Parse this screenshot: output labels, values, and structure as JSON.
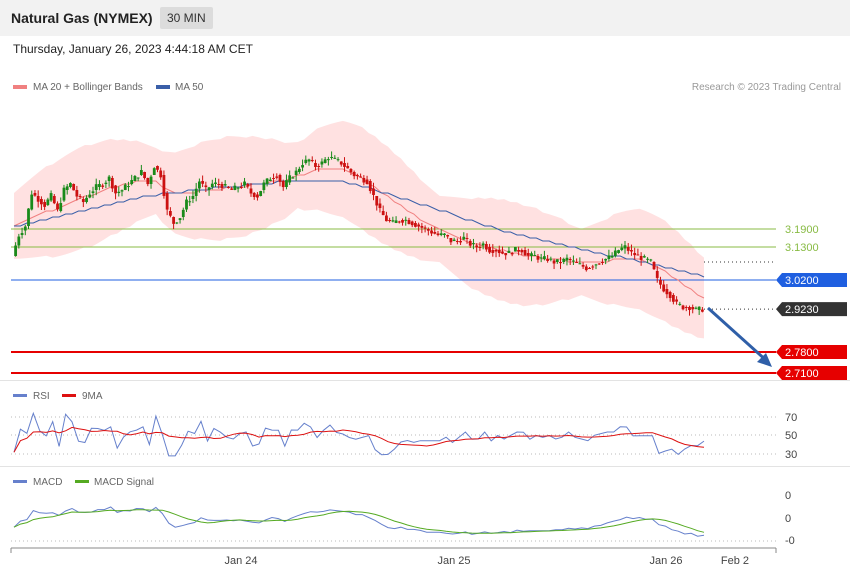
{
  "header": {
    "title": "Natural Gas (NYMEX)",
    "timeframe": "30 MIN",
    "date": "Thursday, January 26, 2023 4:44:18 AM CET"
  },
  "legend": {
    "ma20": "MA 20 + Bollinger Bands",
    "ma50": "MA 50",
    "credit": "Research © 2023 Trading Central",
    "rsi": "RSI",
    "rsi9": "9MA",
    "macd": "MACD",
    "macd_signal": "MACD Signal"
  },
  "colors": {
    "bull": "#1a8a1a",
    "bear": "#cc1111",
    "ma20": "#f08080",
    "ma50": "#3a5fa8",
    "band": "#ffdcdc",
    "resistance": "#88bb44",
    "pivot": "#1f5fe0",
    "last": "#333333",
    "support": "#e60000",
    "rsi": "#6680cc",
    "rsi9": "#dd1111",
    "macd": "#6680cc",
    "macd_signal": "#55aa22"
  },
  "chart_data": {
    "type": "candlestick",
    "xlabels": [
      "Jan 24",
      "Jan 25",
      "Jan 26",
      "Feb 2"
    ],
    "levels": [
      {
        "value": 3.19,
        "label": "3.1900",
        "kind": "resistance"
      },
      {
        "value": 3.13,
        "label": "3.1300",
        "kind": "resistance"
      },
      {
        "value": 3.02,
        "label": "3.0200",
        "kind": "pivot"
      },
      {
        "value": 2.923,
        "label": "2.9230",
        "kind": "last"
      },
      {
        "value": 2.78,
        "label": "2.7800",
        "kind": "support"
      },
      {
        "value": 2.71,
        "label": "2.7100",
        "kind": "support"
      }
    ],
    "price_path": [
      3.1,
      3.17,
      3.2,
      3.31,
      3.29,
      3.27,
      3.3,
      3.25,
      3.32,
      3.34,
      3.3,
      3.28,
      3.31,
      3.33,
      3.34,
      3.36,
      3.31,
      3.32,
      3.34,
      3.36,
      3.38,
      3.34,
      3.4,
      3.37,
      3.25,
      3.21,
      3.23,
      3.28,
      3.3,
      3.35,
      3.32,
      3.34,
      3.34,
      3.33,
      3.32,
      3.33,
      3.34,
      3.31,
      3.3,
      3.34,
      3.36,
      3.37,
      3.33,
      3.36,
      3.38,
      3.41,
      3.42,
      3.4,
      3.41,
      3.43,
      3.42,
      3.41,
      3.39,
      3.37,
      3.36,
      3.35,
      3.3,
      3.25,
      3.22,
      3.21,
      3.22,
      3.22,
      3.21,
      3.2,
      3.19,
      3.18,
      3.17,
      3.17,
      3.15,
      3.15,
      3.16,
      3.14,
      3.13,
      3.14,
      3.12,
      3.12,
      3.11,
      3.11,
      3.12,
      3.12,
      3.1,
      3.1,
      3.09,
      3.09,
      3.08,
      3.08,
      3.09,
      3.08,
      3.07,
      3.06,
      3.07,
      3.08,
      3.09,
      3.1,
      3.12,
      3.13,
      3.11,
      3.1,
      3.09,
      3.08,
      3.02,
      2.99,
      2.97,
      2.94,
      2.93,
      2.93,
      2.92,
      2.923
    ],
    "ma20": [
      3.2,
      3.21,
      3.22,
      3.23,
      3.24,
      3.25,
      3.25,
      3.26,
      3.27,
      3.28,
      3.29,
      3.3,
      3.3,
      3.31,
      3.32,
      3.33,
      3.33,
      3.34,
      3.34,
      3.35,
      3.35,
      3.35,
      3.35,
      3.33,
      3.32,
      3.31,
      3.31,
      3.31,
      3.31,
      3.32,
      3.32,
      3.32,
      3.32,
      3.33,
      3.33,
      3.33,
      3.33,
      3.34,
      3.34,
      3.34,
      3.35,
      3.35,
      3.35,
      3.36,
      3.37,
      3.37,
      3.38,
      3.39,
      3.39,
      3.39,
      3.39,
      3.39,
      3.38,
      3.37,
      3.36,
      3.34,
      3.33,
      3.31,
      3.3,
      3.28,
      3.27,
      3.25,
      3.24,
      3.22,
      3.21,
      3.2,
      3.19,
      3.18,
      3.17,
      3.16,
      3.15,
      3.14,
      3.14,
      3.13,
      3.13,
      3.12,
      3.12,
      3.11,
      3.11,
      3.1,
      3.1,
      3.1,
      3.09,
      3.09,
      3.09,
      3.09,
      3.08,
      3.08,
      3.08,
      3.08,
      3.08,
      3.08,
      3.08,
      3.09,
      3.09,
      3.09,
      3.09,
      3.09,
      3.08,
      3.07,
      3.06,
      3.05,
      3.03,
      3.02,
      3.0,
      2.99,
      2.97,
      2.96
    ],
    "ma50": [
      3.2,
      3.2,
      3.21,
      3.21,
      3.22,
      3.22,
      3.23,
      3.23,
      3.24,
      3.24,
      3.25,
      3.25,
      3.26,
      3.26,
      3.27,
      3.27,
      3.28,
      3.28,
      3.29,
      3.29,
      3.3,
      3.3,
      3.3,
      3.31,
      3.31,
      3.31,
      3.31,
      3.32,
      3.32,
      3.32,
      3.32,
      3.33,
      3.33,
      3.33,
      3.33,
      3.33,
      3.34,
      3.34,
      3.34,
      3.34,
      3.34,
      3.35,
      3.35,
      3.35,
      3.35,
      3.35,
      3.35,
      3.35,
      3.35,
      3.35,
      3.35,
      3.35,
      3.34,
      3.34,
      3.33,
      3.33,
      3.32,
      3.31,
      3.31,
      3.3,
      3.29,
      3.29,
      3.28,
      3.27,
      3.27,
      3.26,
      3.25,
      3.25,
      3.24,
      3.23,
      3.22,
      3.22,
      3.21,
      3.2,
      3.2,
      3.19,
      3.18,
      3.18,
      3.17,
      3.17,
      3.16,
      3.16,
      3.15,
      3.15,
      3.14,
      3.14,
      3.13,
      3.13,
      3.12,
      3.12,
      3.11,
      3.11,
      3.1,
      3.1,
      3.1,
      3.09,
      3.09,
      3.08,
      3.08,
      3.07,
      3.07,
      3.06,
      3.06,
      3.05,
      3.05,
      3.04,
      3.04,
      3.03
    ],
    "rsi": {
      "ticks": [
        "70",
        "50",
        "30"
      ]
    },
    "macd": {
      "ticks": [
        "0",
        "0",
        "-0"
      ]
    }
  }
}
